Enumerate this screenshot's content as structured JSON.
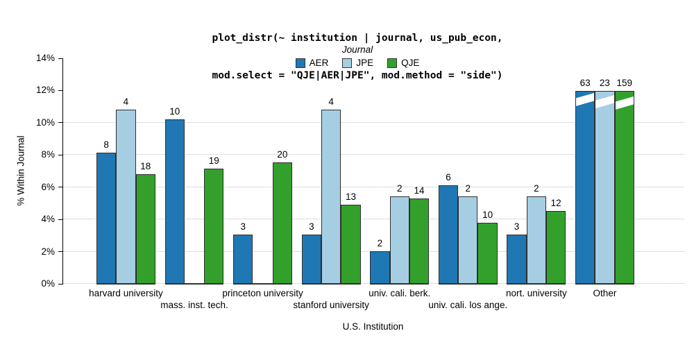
{
  "chart_data": {
    "type": "bar",
    "title_lines": [
      "plot_distr(~ institution | journal, us_pub_econ,",
      "mod.select = \"QJE|AER|JPE\", mod.method = \"side\")"
    ],
    "legend": {
      "title": "Journal",
      "position": "top-center",
      "items": [
        {
          "name": "AER",
          "color": "#1f78b4"
        },
        {
          "name": "JPE",
          "color": "#a6cee3"
        },
        {
          "name": "QJE",
          "color": "#33a02c"
        }
      ]
    },
    "ylabel": "% Within Journal",
    "xlabel": "U.S. Institution",
    "ylim": [
      0,
      14
    ],
    "yticks": {
      "values": [
        0,
        2,
        4,
        6,
        8,
        10,
        12,
        14
      ],
      "labels": [
        "0%",
        "2%",
        "4%",
        "6%",
        "8%",
        "10%",
        "12%",
        "14%"
      ]
    },
    "gridlines_pct": [
      0,
      2,
      4,
      6,
      8,
      10
    ],
    "grid_style": "dotted-horizontal",
    "categories": [
      {
        "label": "harvard university",
        "row": 1
      },
      {
        "label": "mass. inst. tech.",
        "row": 2
      },
      {
        "label": "princeton university",
        "row": 1
      },
      {
        "label": "stanford university",
        "row": 2
      },
      {
        "label": "univ. cali. berk.",
        "row": 1
      },
      {
        "label": "univ. cali. los ange.",
        "row": 2
      },
      {
        "label": "nort. university",
        "row": 1
      },
      {
        "label": "Other",
        "row": 1,
        "broken_axis": true
      }
    ],
    "series": [
      {
        "name": "AER",
        "color": "#1f78b4",
        "counts": [
          8,
          10,
          3,
          3,
          2,
          6,
          3,
          63
        ],
        "pct": [
          8.16,
          10.2,
          3.06,
          3.06,
          2.04,
          6.12,
          3.06,
          11.97
        ]
      },
      {
        "name": "JPE",
        "color": "#a6cee3",
        "counts": [
          4,
          null,
          null,
          4,
          2,
          2,
          2,
          23
        ],
        "pct": [
          10.81,
          null,
          null,
          10.81,
          5.41,
          5.41,
          5.41,
          11.97
        ]
      },
      {
        "name": "QJE",
        "color": "#33a02c",
        "counts": [
          18,
          19,
          20,
          13,
          14,
          10,
          12,
          159
        ],
        "pct": [
          6.79,
          7.17,
          7.55,
          4.91,
          5.28,
          3.77,
          4.53,
          11.97
        ]
      }
    ]
  },
  "colors": {
    "axis": "#000000",
    "gridline": "#bdbdbd",
    "bar_border": "#2e2e2e",
    "group_baseline": "#333333",
    "break_mark": "#ffffff",
    "text": "#000000"
  }
}
